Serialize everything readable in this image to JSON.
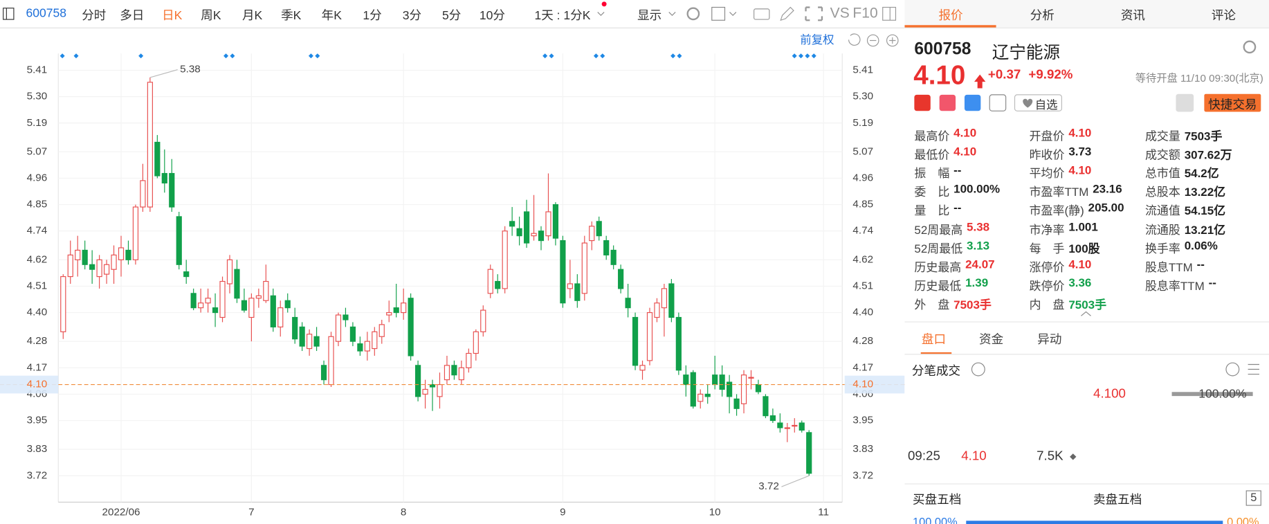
{
  "toolbar": {
    "code": "600758",
    "items": [
      "分时",
      "多日",
      "日K",
      "周K",
      "月K",
      "季K",
      "年K",
      "1分",
      "3分",
      "5分",
      "10分",
      "1天 : 1分K"
    ],
    "active": 2,
    "display": "显示",
    "vs": "VS",
    "f10": "F10"
  },
  "chart_data": {
    "type": "candlestick",
    "adjust_label": "前复权",
    "categories": [
      null,
      null,
      null,
      null,
      null,
      null,
      null,
      null,
      "2022/06",
      null,
      null,
      null,
      null,
      null,
      null,
      null,
      null,
      null,
      null,
      null,
      null,
      null,
      null,
      null,
      null,
      null,
      "7",
      null,
      null,
      null,
      null,
      null,
      null,
      null,
      null,
      null,
      null,
      null,
      null,
      null,
      null,
      null,
      null,
      null,
      null,
      null,
      null,
      "8",
      null,
      null,
      null,
      null,
      null,
      null,
      null,
      null,
      null,
      null,
      null,
      null,
      null,
      null,
      null,
      null,
      null,
      null,
      null,
      null,
      null,
      "9",
      null,
      null,
      null,
      null,
      null,
      null,
      null,
      null,
      null,
      null,
      null,
      null,
      null,
      null,
      null,
      null,
      null,
      null,
      null,
      null,
      "10",
      null,
      null,
      null,
      null,
      null,
      null,
      null,
      null,
      null,
      null,
      null,
      null,
      null,
      null,
      "11"
    ],
    "ohlc": [
      [
        4.32,
        4.56,
        4.29,
        4.55
      ],
      [
        4.55,
        4.7,
        4.52,
        4.64
      ],
      [
        4.62,
        4.72,
        4.55,
        4.66
      ],
      [
        4.66,
        4.7,
        4.58,
        4.6
      ],
      [
        4.6,
        4.66,
        4.52,
        4.58
      ],
      [
        4.55,
        4.64,
        4.5,
        4.62
      ],
      [
        4.56,
        4.62,
        4.52,
        4.6
      ],
      [
        4.58,
        4.68,
        4.52,
        4.64
      ],
      [
        4.62,
        4.72,
        4.55,
        4.67
      ],
      [
        4.66,
        4.7,
        4.6,
        4.62
      ],
      [
        4.62,
        4.85,
        4.6,
        4.84
      ],
      [
        4.84,
        5.02,
        4.82,
        4.95
      ],
      [
        4.84,
        5.38,
        4.82,
        5.36
      ],
      [
        5.11,
        5.14,
        4.96,
        4.97
      ],
      [
        4.98,
        5.08,
        4.9,
        4.94
      ],
      [
        4.98,
        5.04,
        4.82,
        4.84
      ],
      [
        4.8,
        4.82,
        4.58,
        4.6
      ],
      [
        4.57,
        4.62,
        4.52,
        4.55
      ],
      [
        4.48,
        4.5,
        4.41,
        4.42
      ],
      [
        4.42,
        4.5,
        4.4,
        4.44
      ],
      [
        4.44,
        4.5,
        4.4,
        4.46
      ],
      [
        4.42,
        4.48,
        4.34,
        4.4
      ],
      [
        4.38,
        4.55,
        4.36,
        4.53
      ],
      [
        4.52,
        4.64,
        4.48,
        4.62
      ],
      [
        4.58,
        4.62,
        4.44,
        4.46
      ],
      [
        4.45,
        4.5,
        4.4,
        4.41
      ],
      [
        4.38,
        4.48,
        4.28,
        4.46
      ],
      [
        4.46,
        4.5,
        4.42,
        4.47
      ],
      [
        4.45,
        4.6,
        4.44,
        4.53
      ],
      [
        4.47,
        4.5,
        4.32,
        4.34
      ],
      [
        4.34,
        4.45,
        4.3,
        4.42
      ],
      [
        4.45,
        4.48,
        4.4,
        4.42
      ],
      [
        4.38,
        4.42,
        4.27,
        4.29
      ],
      [
        4.34,
        4.36,
        4.24,
        4.26
      ],
      [
        4.25,
        4.33,
        4.22,
        4.31
      ],
      [
        4.3,
        4.34,
        4.24,
        4.26
      ],
      [
        4.18,
        4.2,
        4.1,
        4.12
      ],
      [
        4.1,
        4.32,
        4.09,
        4.3
      ],
      [
        4.28,
        4.4,
        4.26,
        4.39
      ],
      [
        4.39,
        4.42,
        4.34,
        4.37
      ],
      [
        4.34,
        4.36,
        4.26,
        4.28
      ],
      [
        4.27,
        4.3,
        4.22,
        4.24
      ],
      [
        4.24,
        4.32,
        4.2,
        4.28
      ],
      [
        4.25,
        4.34,
        4.22,
        4.32
      ],
      [
        4.3,
        4.37,
        4.27,
        4.35
      ],
      [
        4.39,
        4.45,
        4.36,
        4.4
      ],
      [
        4.42,
        4.52,
        4.38,
        4.4
      ],
      [
        4.4,
        4.5,
        4.37,
        4.44
      ],
      [
        4.46,
        4.48,
        4.2,
        4.22
      ],
      [
        4.18,
        4.2,
        4.03,
        4.05
      ],
      [
        4.06,
        4.12,
        4.0,
        4.08
      ],
      [
        4.1,
        4.12,
        3.99,
        4.09
      ],
      [
        4.05,
        4.15,
        4.0,
        4.1
      ],
      [
        4.12,
        4.22,
        4.1,
        4.18
      ],
      [
        4.18,
        4.2,
        4.12,
        4.14
      ],
      [
        4.12,
        4.2,
        4.1,
        4.17
      ],
      [
        4.17,
        4.25,
        4.15,
        4.23
      ],
      [
        4.23,
        4.33,
        4.2,
        4.32
      ],
      [
        4.32,
        4.43,
        4.3,
        4.41
      ],
      [
        4.48,
        4.6,
        4.46,
        4.58
      ],
      [
        4.53,
        4.56,
        4.48,
        4.5
      ],
      [
        4.5,
        4.76,
        4.48,
        4.74
      ],
      [
        4.78,
        4.84,
        4.72,
        4.76
      ],
      [
        4.75,
        4.8,
        4.68,
        4.72
      ],
      [
        4.82,
        4.87,
        4.67,
        4.69
      ],
      [
        4.72,
        4.89,
        4.7,
        4.73
      ],
      [
        4.74,
        4.76,
        4.66,
        4.7
      ],
      [
        4.72,
        4.98,
        4.7,
        4.82
      ],
      [
        4.85,
        4.86,
        4.68,
        4.71
      ],
      [
        4.7,
        4.72,
        4.42,
        4.44
      ],
      [
        4.5,
        4.62,
        4.46,
        4.52
      ],
      [
        4.52,
        4.56,
        4.42,
        4.45
      ],
      [
        4.48,
        4.72,
        4.45,
        4.69
      ],
      [
        4.7,
        4.78,
        4.66,
        4.76
      ],
      [
        4.78,
        4.8,
        4.7,
        4.72
      ],
      [
        4.7,
        4.72,
        4.62,
        4.64
      ],
      [
        4.66,
        4.68,
        4.58,
        4.6
      ],
      [
        4.58,
        4.6,
        4.48,
        4.5
      ],
      [
        4.46,
        4.52,
        4.38,
        4.42
      ],
      [
        4.38,
        4.4,
        4.16,
        4.18
      ],
      [
        4.16,
        4.2,
        4.12,
        4.18
      ],
      [
        4.2,
        4.42,
        4.18,
        4.4
      ],
      [
        4.38,
        4.46,
        4.36,
        4.44
      ],
      [
        4.42,
        4.52,
        4.3,
        4.5
      ],
      [
        4.52,
        4.54,
        4.36,
        4.38
      ],
      [
        4.38,
        4.4,
        4.14,
        4.16
      ],
      [
        4.14,
        4.18,
        4.05,
        4.1
      ],
      [
        4.15,
        4.16,
        4.0,
        4.01
      ],
      [
        4.03,
        4.08,
        4.0,
        4.06
      ],
      [
        4.06,
        4.1,
        4.02,
        4.05
      ],
      [
        4.14,
        4.22,
        4.08,
        4.1
      ],
      [
        4.14,
        4.18,
        4.05,
        4.08
      ],
      [
        4.11,
        4.14,
        3.98,
        4.05
      ],
      [
        4.04,
        4.06,
        3.97,
        4.0
      ],
      [
        4.02,
        4.16,
        3.98,
        4.14
      ],
      [
        4.13,
        4.16,
        4.08,
        4.13
      ],
      [
        4.1,
        4.12,
        4.06,
        4.07
      ],
      [
        4.05,
        4.06,
        3.96,
        3.97
      ],
      [
        3.97,
        4.0,
        3.94,
        3.95
      ],
      [
        3.94,
        3.98,
        3.9,
        3.92
      ],
      [
        3.92,
        3.94,
        3.86,
        3.92
      ],
      [
        3.93,
        3.96,
        3.9,
        3.93
      ],
      [
        3.94,
        3.95,
        3.9,
        3.91
      ],
      [
        3.9,
        3.91,
        3.72,
        3.73
      ],
      null,
      null
    ],
    "ylim": [
      3.61,
      5.48
    ],
    "yticks": [
      5.41,
      {
        "value": 5.3,
        "label": "5.30"
      },
      5.19,
      5.07,
      4.96,
      4.85,
      4.74,
      4.62,
      4.51,
      {
        "value": 4.4,
        "label": "4.40"
      },
      4.28,
      4.17,
      4.06,
      3.95,
      3.83,
      3.72
    ],
    "up_color": "#e84f4f",
    "down_color": "#11a04a",
    "grid": true,
    "last_price": {
      "value": 4.1,
      "label": "4.10"
    },
    "high_label": 5.38,
    "low_label": 3.72
  },
  "quote": {
    "tabs": [
      "报价",
      "分析",
      "资讯",
      "评论"
    ],
    "active_tab": 0,
    "code": "600758",
    "name": "辽宁能源",
    "price": "4.10",
    "change": "+0.37",
    "change_pct": "+9.92%",
    "status": "等待开盘 11/10 09:30(北京)",
    "watch": "自选",
    "trade": "快捷交易",
    "up_color": "#e93030",
    "down_color": "#12a04b",
    "stats": [
      [
        {
          "label": "最高价",
          "value": "4.10",
          "tone": "up"
        },
        {
          "label": "最低价",
          "value": "4.10",
          "tone": "up"
        },
        {
          "label": "振　幅",
          "value": "--"
        },
        {
          "label": "委　比",
          "value": "100.00%"
        },
        {
          "label": "量　比",
          "value": "--"
        },
        {
          "label": "52周最高",
          "value": "5.38",
          "tone": "up"
        },
        {
          "label": "52周最低",
          "value": "3.13",
          "tone": "down"
        },
        {
          "label": "历史最高",
          "value": "24.07",
          "tone": "up"
        },
        {
          "label": "历史最低",
          "value": "1.39",
          "tone": "down"
        },
        {
          "label": "外　盘",
          "value": "7503手",
          "tone": "up"
        }
      ],
      [
        {
          "label": "开盘价",
          "value": "4.10",
          "tone": "up"
        },
        {
          "label": "昨收价",
          "value": "3.73"
        },
        {
          "label": "平均价",
          "value": "4.10",
          "tone": "up"
        },
        {
          "label": "市盈率TTM",
          "value": "23.16"
        },
        {
          "label": "市盈率(静)",
          "value": "205.00"
        },
        {
          "label": "市净率",
          "value": "1.001"
        },
        {
          "label": "每　手",
          "value": "100股"
        },
        {
          "label": "涨停价",
          "value": "4.10",
          "tone": "up"
        },
        {
          "label": "跌停价",
          "value": "3.36",
          "tone": "down"
        },
        {
          "label": "内　盘",
          "value": "7503手",
          "tone": "down"
        }
      ],
      [
        {
          "label": "成交量",
          "value": "7503手"
        },
        {
          "label": "成交额",
          "value": "307.62万"
        },
        {
          "label": "总市值",
          "value": "54.2亿"
        },
        {
          "label": "总股本",
          "value": "13.22亿"
        },
        {
          "label": "流通值",
          "value": "54.15亿"
        },
        {
          "label": "流通股",
          "value": "13.21亿"
        },
        {
          "label": "换手率",
          "value": "0.06%"
        },
        {
          "label": "股息TTM",
          "value": "--"
        },
        {
          "label": "股息率TTM",
          "value": "--"
        }
      ]
    ],
    "sub_tabs": [
      "盘口",
      "资金",
      "异动"
    ],
    "ticks_title": "分笔成交",
    "tick_price": "4.100",
    "tick_ratio": "100.00%",
    "tick_time": "09:25",
    "tick_last": "4.10",
    "tick_volume": "7.5K",
    "bid_title": "买盘五档",
    "ask_title": "卖盘五档",
    "depth_count": "5",
    "bid_ratio": "100.00%",
    "ask_ratio": "0.00%"
  }
}
